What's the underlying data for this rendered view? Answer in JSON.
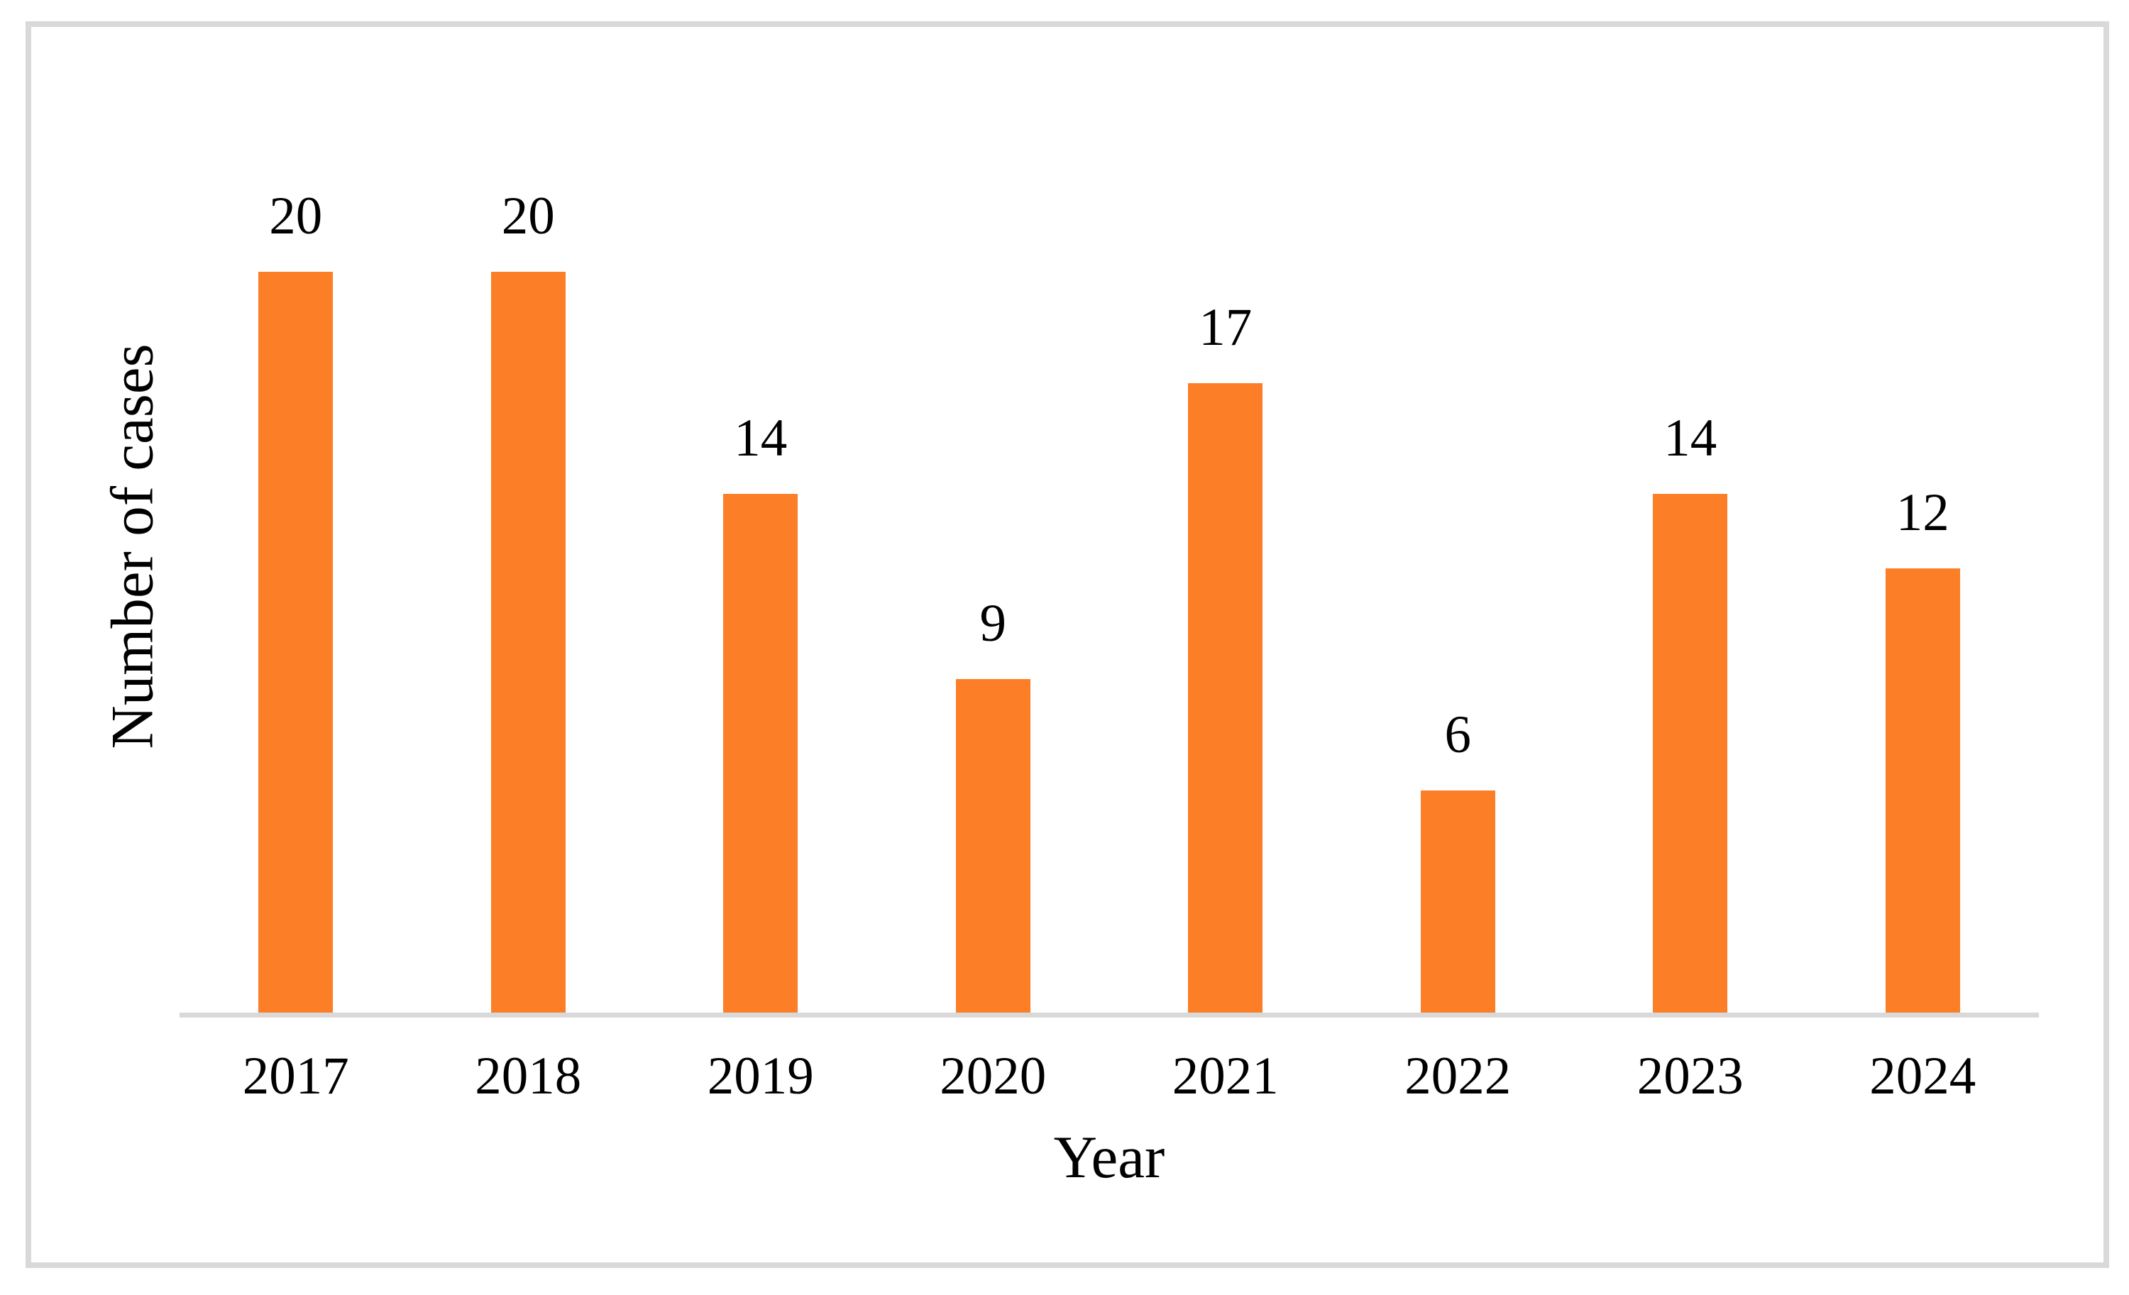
{
  "chart_data": {
    "type": "bar",
    "categories": [
      "2017",
      "2018",
      "2019",
      "2020",
      "2021",
      "2022",
      "2023",
      "2024"
    ],
    "values": [
      20,
      20,
      14,
      9,
      17,
      6,
      14,
      12
    ],
    "title": "",
    "xlabel": "Year",
    "ylabel": "Number of cases",
    "ylim": [
      0,
      22
    ],
    "grid": false,
    "legend": false,
    "data_labels": true,
    "bar_color": "#FC7E26",
    "axis_color": "#D9D9D9",
    "text_color": "#000000"
  }
}
